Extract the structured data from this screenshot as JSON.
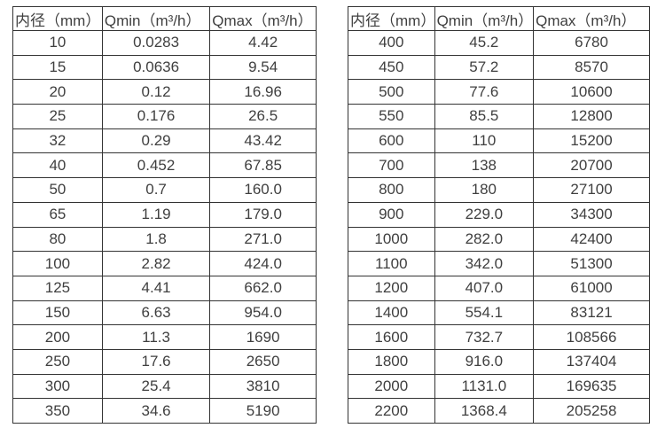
{
  "page": {
    "background": "#ffffff",
    "border_color": "#333333",
    "text_color": "#3f3f3f"
  },
  "tables": [
    {
      "name": "flow-spec-table-small-diameters",
      "headers": [
        "内径（mm）",
        "Qmin（m³/h）",
        "Qmax（m³/h）"
      ],
      "rows": [
        [
          "10",
          "0.0283",
          "4.42"
        ],
        [
          "15",
          "0.0636",
          "9.54"
        ],
        [
          "20",
          "0.12",
          "16.96"
        ],
        [
          "25",
          "0.176",
          "26.5"
        ],
        [
          "32",
          "0.29",
          "43.42"
        ],
        [
          "40",
          "0.452",
          "67.85"
        ],
        [
          "50",
          "0.7",
          "160.0"
        ],
        [
          "65",
          "1.19",
          "179.0"
        ],
        [
          "80",
          "1.8",
          "271.0"
        ],
        [
          "100",
          "2.82",
          "424.0"
        ],
        [
          "125",
          "4.41",
          "662.0"
        ],
        [
          "150",
          "6.63",
          "954.0"
        ],
        [
          "200",
          "11.3",
          "1690"
        ],
        [
          "250",
          "17.6",
          "2650"
        ],
        [
          "300",
          "25.4",
          "3810"
        ],
        [
          "350",
          "34.6",
          "5190"
        ]
      ]
    },
    {
      "name": "flow-spec-table-large-diameters",
      "headers": [
        "内径（mm）",
        "Qmin（m³/h）",
        "Qmax（m³/h）"
      ],
      "rows": [
        [
          "400",
          "45.2",
          "6780"
        ],
        [
          "450",
          "57.2",
          "8570"
        ],
        [
          "500",
          "77.6",
          "10600"
        ],
        [
          "550",
          "85.5",
          "12800"
        ],
        [
          "600",
          "110",
          "15200"
        ],
        [
          "700",
          "138",
          "20700"
        ],
        [
          "800",
          "180",
          "27100"
        ],
        [
          "900",
          "229.0",
          "34300"
        ],
        [
          "1000",
          "282.0",
          "42400"
        ],
        [
          "1100",
          "342.0",
          "51300"
        ],
        [
          "1200",
          "407.0",
          "61000"
        ],
        [
          "1400",
          "554.1",
          "83121"
        ],
        [
          "1600",
          "732.7",
          "108566"
        ],
        [
          "1800",
          "916.0",
          "137404"
        ],
        [
          "2000",
          "1131.0",
          "169635"
        ],
        [
          "2200",
          "1368.4",
          "205258"
        ]
      ]
    }
  ]
}
